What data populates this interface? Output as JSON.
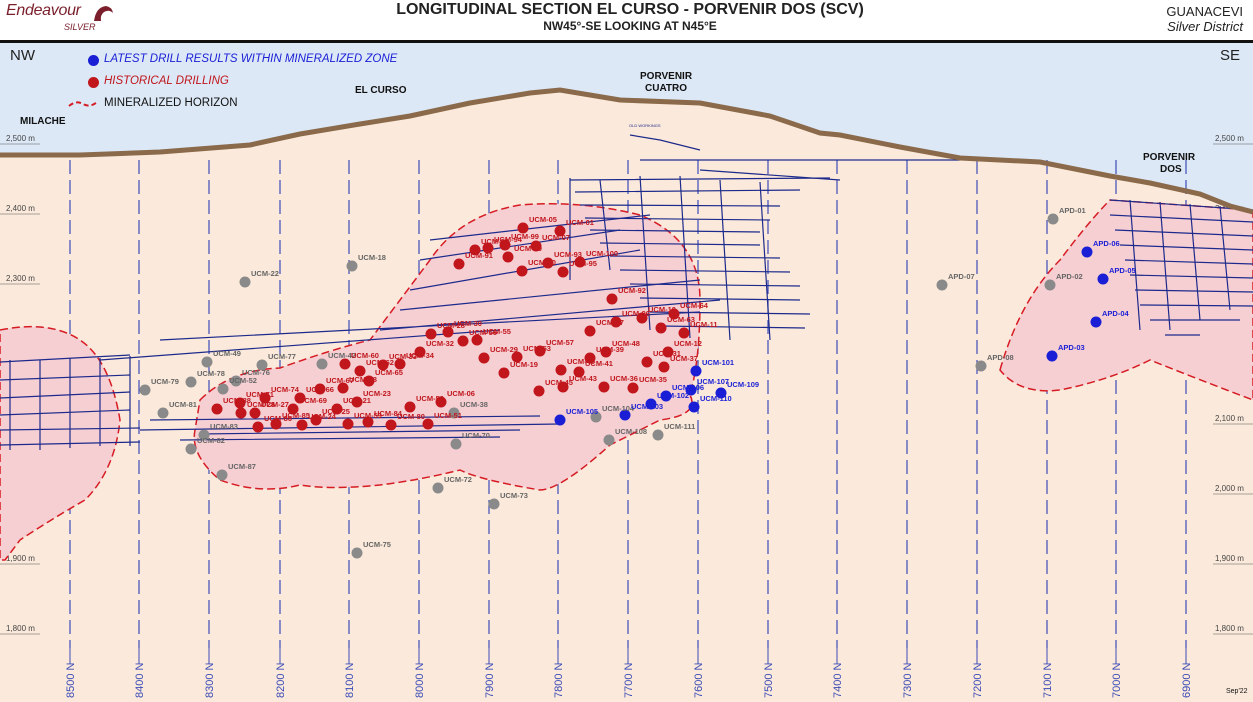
{
  "header": {
    "logo_name": "Endeavour",
    "logo_sub": "SILVER",
    "title": "LONGITUDINAL SECTION EL CURSO - PORVENIR DOS (SCV)",
    "subtitle": "NW45°-SE LOOKING AT N45°E",
    "region": "GUANACEVI",
    "district": "Silver District"
  },
  "legend": {
    "latest": "LATEST DRILL RESULTS WITHIN MINERALIZED ZONE",
    "historical": "HISTORICAL DRILLING",
    "horizon": "MINERALIZED HORIZON"
  },
  "directions": {
    "left": "NW",
    "right": "SE"
  },
  "place_labels": [
    "MILACHE",
    "EL CURSO",
    "PORVENIR CUATRO",
    "PORVENIR DOS"
  ],
  "elevations": [
    "2,500 m",
    "2,400 m",
    "2,300 m",
    "2,200 m",
    "2,100 m",
    "2,000 m",
    "1,900 m",
    "1,800 m"
  ],
  "northings": [
    "8500 N",
    "8400 N",
    "8300 N",
    "8200 N",
    "8100 N",
    "8000 N",
    "7900 N",
    "7800 N",
    "7700 N",
    "7600 N",
    "7500 N",
    "7400 N",
    "7300 N",
    "7200 N",
    "7100 N",
    "7000 N",
    "6900 N"
  ],
  "latest_holes": [
    "APD-06",
    "APD-05",
    "APD-04",
    "APD-03",
    "UCM-101",
    "UCM-107",
    "UCM-106",
    "UCM-109",
    "UCM-110",
    "UCM-102",
    "UCM-103",
    "UCM-105"
  ],
  "historical_holes": [
    "UCM-01",
    "UCM-05",
    "UCM-07",
    "UCM-90",
    "UCM-93",
    "UCM-89",
    "UCM-94",
    "UCM-91",
    "UCM-98",
    "UCM-99",
    "UCM-100",
    "UCM-95",
    "UCM-92",
    "UCM-96",
    "UCM-10",
    "UCM-63",
    "UCM-64",
    "UCM-11",
    "UCM-12",
    "UCM-37",
    "UCM-31",
    "UCM-35",
    "UCM-36",
    "UCM-48",
    "UCM-47",
    "UCM-39",
    "UCM-41",
    "UCM-40",
    "UCM-43",
    "UCM-45",
    "UCM-57",
    "UCM-53",
    "UCM-19",
    "UCM-29",
    "UCM-55",
    "UCM-56",
    "UCM-30",
    "UCM-28",
    "UCM-32",
    "UCM-34",
    "UCM-33",
    "UCM-65",
    "UCM-62",
    "UCM-60",
    "UCM-68",
    "UCM-67",
    "UCM-66",
    "UCM-69",
    "UCM-74",
    "UCM-71",
    "UCM-27",
    "UCM-28",
    "UCM-88",
    "UCM-86",
    "UCM-85",
    "UCM-24",
    "UCM-25",
    "UCM-21",
    "UCM-23",
    "UCM-59",
    "UCM-84",
    "UCM-80",
    "UCM-50",
    "UCM-51",
    "UCM-06"
  ],
  "barren_holes": [
    "UCM-22",
    "UCM-18",
    "UCM-49",
    "UCM-77",
    "UCM-42",
    "UCM-78",
    "UCM-76",
    "UCM-52",
    "UCM-79",
    "UCM-81",
    "UCM-83",
    "UCM-82",
    "UCM-87",
    "UCM-38",
    "UCM-70",
    "UCM-72",
    "UCM-73",
    "UCM-75",
    "UCM-104",
    "UCM-108",
    "UCM-111",
    "APD-01",
    "APD-02",
    "APD-07",
    "APD-08"
  ],
  "colors": {
    "sky": "#dce8f6",
    "ground": "#fbeadb",
    "topo": "#8a6a4a",
    "zone_fill": "#f6cfd3",
    "zone_edge": "#d61b23",
    "workings": "#1d2a8c",
    "grid": "#3c4cb8",
    "latest": "#1a1fd6",
    "historical": "#c0161c",
    "barren": "#8a8a8a",
    "brand": "#7a1f2b"
  },
  "footer": {
    "date": "Sep'22",
    "old_workings": "OLD WORKINGS"
  }
}
